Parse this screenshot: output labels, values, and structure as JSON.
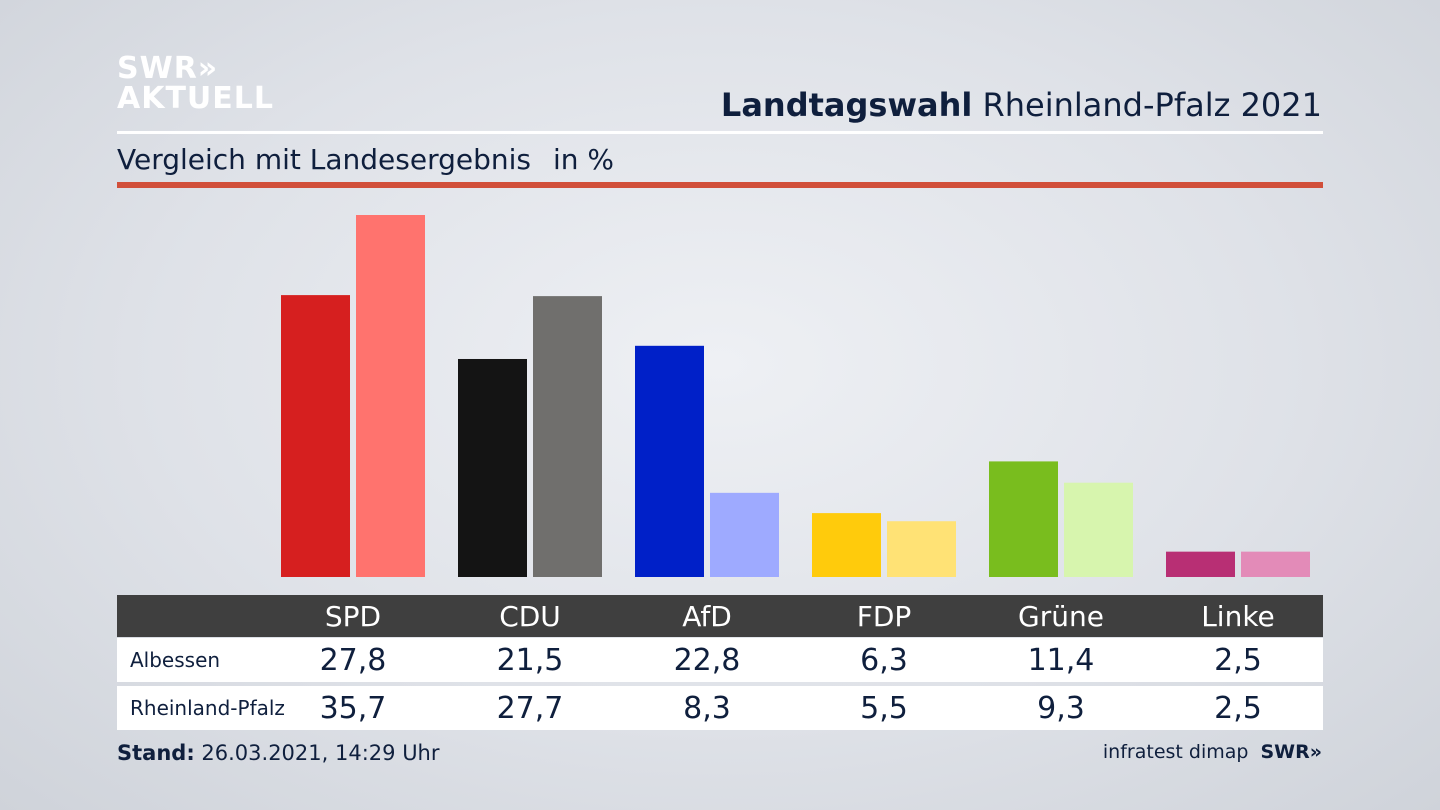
{
  "header": {
    "logo_line1": "SWR»",
    "logo_line2": "AKTUELL",
    "title_bold": "Landtagswahl",
    "title_rest": "Rheinland-Pfalz 2021",
    "subtitle": "Vergleich mit Landesergebnis",
    "unit": "in %"
  },
  "colors": {
    "accent_rule": "#d14f3a",
    "SPD": [
      "#d61f1f",
      "#ff736e"
    ],
    "CDU": [
      "#141414",
      "#706f6d"
    ],
    "AfD": [
      "#0020c8",
      "#9eaaff"
    ],
    "FDP": [
      "#ffcb0c",
      "#ffe275"
    ],
    "Grüne": [
      "#79bd1e",
      "#d7f5ae"
    ],
    "Linke": [
      "#b82f74",
      "#e38bb8"
    ]
  },
  "chart_data": {
    "type": "bar",
    "categories": [
      "SPD",
      "CDU",
      "AfD",
      "FDP",
      "Grüne",
      "Linke"
    ],
    "series": [
      {
        "name": "Albessen",
        "values": [
          27.8,
          21.5,
          22.8,
          6.3,
          11.4,
          2.5
        ],
        "labels": [
          "27,8",
          "21,5",
          "22,8",
          "6,3",
          "11,4",
          "2,5"
        ]
      },
      {
        "name": "Rheinland-Pfalz",
        "values": [
          35.7,
          27.7,
          8.3,
          5.5,
          9.3,
          2.5
        ],
        "labels": [
          "35,7",
          "27,7",
          "8,3",
          "5,5",
          "9,3",
          "2,5"
        ]
      }
    ],
    "ylim": [
      0,
      35.7
    ]
  },
  "footer": {
    "stand_label": "Stand:",
    "stand_value": "26.03.2021, 14:29 Uhr",
    "source": "infratest dimap",
    "brand": "SWR»"
  }
}
